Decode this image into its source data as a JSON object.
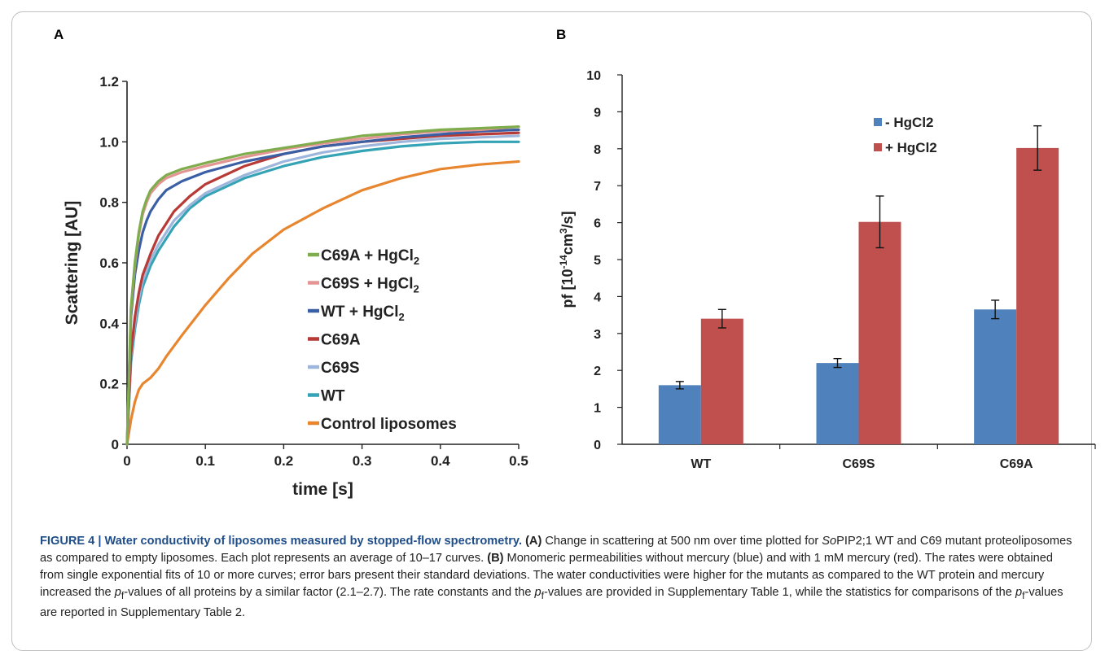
{
  "panel_labels": {
    "a": "A",
    "b": "B"
  },
  "chart_data": [
    {
      "type": "line",
      "title": "",
      "xlabel": "time [s]",
      "ylabel": "Scattering [AU]",
      "xlim": [
        0,
        0.5
      ],
      "ylim": [
        0,
        1.2
      ],
      "x_ticks": [
        0,
        0.1,
        0.2,
        0.3,
        0.4,
        0.5
      ],
      "x_tick_labels": [
        "0",
        "0.1",
        "0.2",
        "0.3",
        "0.4",
        "0.5"
      ],
      "y_ticks": [
        0,
        0.2,
        0.4,
        0.6,
        0.8,
        1.0,
        1.2
      ],
      "y_tick_labels": [
        "0",
        "0.2",
        "0.4",
        "0.6",
        "0.8",
        "1.0",
        "1.2"
      ],
      "grid": false,
      "legend_position": "center-right",
      "series": [
        {
          "name": "C69A + HgCl",
          "name_sub": "2",
          "color": "#7fac4d",
          "x": [
            0,
            0.005,
            0.01,
            0.015,
            0.02,
            0.025,
            0.03,
            0.04,
            0.05,
            0.07,
            0.1,
            0.15,
            0.2,
            0.25,
            0.3,
            0.35,
            0.4,
            0.45,
            0.5
          ],
          "y": [
            0,
            0.45,
            0.6,
            0.7,
            0.77,
            0.81,
            0.84,
            0.87,
            0.89,
            0.91,
            0.93,
            0.96,
            0.98,
            1.0,
            1.02,
            1.03,
            1.04,
            1.045,
            1.05
          ]
        },
        {
          "name": "C69S + HgCl",
          "name_sub": "2",
          "color": "#e39593",
          "x": [
            0,
            0.005,
            0.01,
            0.015,
            0.02,
            0.025,
            0.03,
            0.04,
            0.05,
            0.07,
            0.1,
            0.15,
            0.2,
            0.25,
            0.3,
            0.35,
            0.4,
            0.45,
            0.5
          ],
          "y": [
            0,
            0.44,
            0.59,
            0.69,
            0.76,
            0.8,
            0.83,
            0.86,
            0.88,
            0.9,
            0.92,
            0.95,
            0.975,
            0.995,
            1.01,
            1.025,
            1.035,
            1.04,
            1.05
          ]
        },
        {
          "name": "WT + HgCl",
          "name_sub": "2",
          "color": "#3a5fa5",
          "x": [
            0,
            0.005,
            0.01,
            0.015,
            0.02,
            0.025,
            0.03,
            0.04,
            0.05,
            0.07,
            0.1,
            0.15,
            0.2,
            0.25,
            0.3,
            0.35,
            0.4,
            0.45,
            0.5
          ],
          "y": [
            0,
            0.42,
            0.56,
            0.64,
            0.7,
            0.74,
            0.77,
            0.81,
            0.84,
            0.87,
            0.9,
            0.935,
            0.96,
            0.985,
            1.0,
            1.015,
            1.025,
            1.035,
            1.04
          ]
        },
        {
          "name": "C69A",
          "name_sub": "",
          "color": "#b83a36",
          "x": [
            0,
            0.005,
            0.01,
            0.015,
            0.02,
            0.03,
            0.04,
            0.05,
            0.06,
            0.08,
            0.1,
            0.15,
            0.2,
            0.25,
            0.3,
            0.35,
            0.4,
            0.45,
            0.5
          ],
          "y": [
            0,
            0.3,
            0.42,
            0.5,
            0.56,
            0.63,
            0.69,
            0.73,
            0.77,
            0.82,
            0.86,
            0.92,
            0.96,
            0.985,
            1.0,
            1.01,
            1.02,
            1.025,
            1.03
          ]
        },
        {
          "name": "C69S",
          "name_sub": "",
          "color": "#9eb5dc",
          "x": [
            0,
            0.005,
            0.01,
            0.015,
            0.02,
            0.03,
            0.04,
            0.05,
            0.06,
            0.08,
            0.1,
            0.15,
            0.2,
            0.25,
            0.3,
            0.35,
            0.4,
            0.45,
            0.5
          ],
          "y": [
            0,
            0.29,
            0.4,
            0.48,
            0.54,
            0.61,
            0.66,
            0.7,
            0.74,
            0.79,
            0.83,
            0.89,
            0.935,
            0.965,
            0.985,
            1.0,
            1.01,
            1.015,
            1.02
          ]
        },
        {
          "name": "WT",
          "name_sub": "",
          "color": "#34a3b5",
          "x": [
            0,
            0.005,
            0.01,
            0.015,
            0.02,
            0.03,
            0.04,
            0.05,
            0.06,
            0.08,
            0.1,
            0.15,
            0.2,
            0.25,
            0.3,
            0.35,
            0.4,
            0.45,
            0.5
          ],
          "y": [
            0,
            0.27,
            0.38,
            0.46,
            0.52,
            0.59,
            0.64,
            0.68,
            0.72,
            0.78,
            0.82,
            0.88,
            0.92,
            0.95,
            0.97,
            0.985,
            0.995,
            1.0,
            1.0
          ]
        },
        {
          "name": "Control liposomes",
          "name_sub": "",
          "color": "#e8862f",
          "x": [
            0,
            0.005,
            0.01,
            0.015,
            0.02,
            0.025,
            0.03,
            0.04,
            0.05,
            0.07,
            0.1,
            0.13,
            0.16,
            0.2,
            0.25,
            0.3,
            0.35,
            0.4,
            0.45,
            0.5
          ],
          "y": [
            0,
            0.08,
            0.14,
            0.18,
            0.2,
            0.21,
            0.22,
            0.25,
            0.29,
            0.36,
            0.46,
            0.55,
            0.63,
            0.71,
            0.78,
            0.84,
            0.88,
            0.91,
            0.925,
            0.935
          ]
        }
      ]
    },
    {
      "type": "bar",
      "title": "",
      "xlabel": "",
      "ylabel": "pf [10",
      "ylabel_sup1": "-14",
      "ylabel_mid": "cm",
      "ylabel_sup2": "3",
      "ylabel_end": "/s]",
      "ylim": [
        0,
        10
      ],
      "y_ticks": [
        0,
        1,
        2,
        3,
        4,
        5,
        6,
        7,
        8,
        9,
        10
      ],
      "grid": false,
      "legend_position": "top-center",
      "categories": [
        "WT",
        "C69S",
        "C69A"
      ],
      "series": [
        {
          "name": "- HgCl2",
          "color": "#4f81bd",
          "values": [
            1.6,
            2.2,
            3.65
          ],
          "errors": [
            0.1,
            0.12,
            0.25
          ]
        },
        {
          "name": "+ HgCl2",
          "color": "#c0504d",
          "values": [
            3.4,
            6.02,
            8.02
          ],
          "errors": [
            0.25,
            0.7,
            0.6
          ]
        }
      ]
    }
  ],
  "caption": {
    "label": "FIGURE 4 | Water conductivity of liposomes measured by stopped-flow spectrometry.",
    "ref_a": "(A)",
    "text_a1": "Change in scattering at 500 nm over time plotted for",
    "so_italic": "So",
    "text_a2": "PIP2;1 WT and C69 mutant proteoliposomes as compared to empty liposomes. Each plot represents an average of 10–17 curves.",
    "ref_b": "(B)",
    "text_b1": "Monomeric permeabilities without mercury (blue) and with 1 mM mercury (red). The rates were obtained from single exponential fits of 10 or more curves; error bars present their standard deviations. The water conductivities were higher for the mutants as compared to the WT protein and mercury increased the",
    "pf_p": "p",
    "pf_f": "f",
    "text_b2": "-values of all proteins by a similar factor (2.1–2.7). The rate constants and the",
    "text_b3": "-values are provided in Supplementary Table 1, while the statistics for comparisons of the",
    "text_b4": "-values are reported in Supplementary Table 2."
  }
}
